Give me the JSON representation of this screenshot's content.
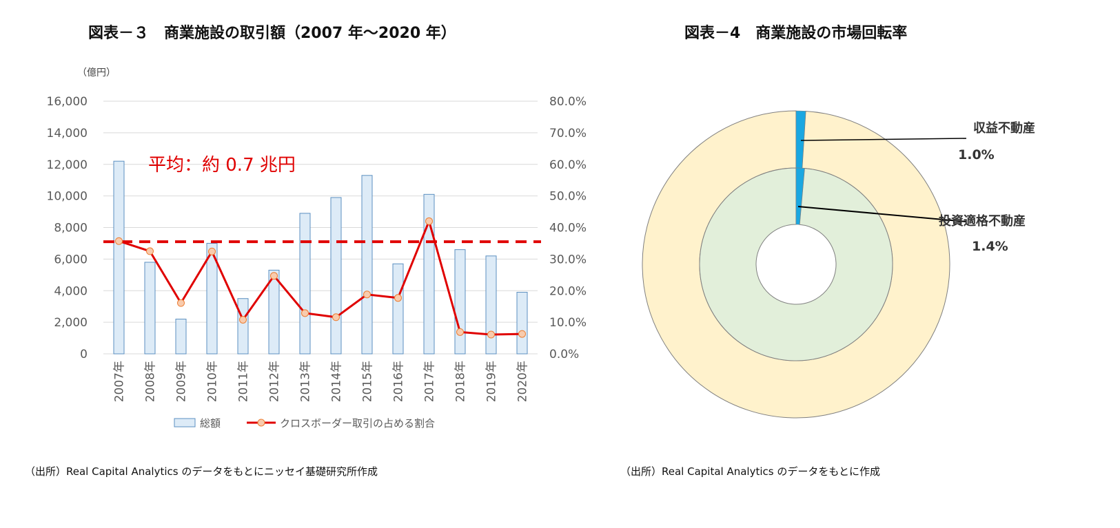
{
  "left": {
    "title": "図表－３　商業施設の取引額（2007 年～2020 年）",
    "source": "（出所）Real Capital Analytics のデータをもとにニッセイ基礎研究所作成"
  },
  "right": {
    "title": "図表－4　商業施設の市場回転率",
    "source": "（出所）Real Capital Analytics のデータをもとに作成"
  },
  "chart_data": [
    {
      "type": "bar+line",
      "title": "図表－３　商業施設の取引額（2007 年～2020 年）",
      "ylabel": "（億円）",
      "ylim": [
        0,
        16000
      ],
      "yticks": [
        "0",
        "2,000",
        "4,000",
        "6,000",
        "8,000",
        "10,000",
        "12,000",
        "14,000",
        "16,000"
      ],
      "y2lim": [
        0,
        80
      ],
      "y2ticks": [
        "0.0%",
        "10.0%",
        "20.0%",
        "30.0%",
        "40.0%",
        "50.0%",
        "60.0%",
        "70.0%",
        "80.0%"
      ],
      "grid": true,
      "legend": "bottom",
      "categories": [
        "2007年",
        "2008年",
        "2009年",
        "2010年",
        "2011年",
        "2012年",
        "2013年",
        "2014年",
        "2015年",
        "2016年",
        "2017年",
        "2018年",
        "2019年",
        "2020年"
      ],
      "series": [
        {
          "name": "総額",
          "type": "bar",
          "axis": "left",
          "color": "#ddebf7",
          "values": [
            12200,
            5800,
            2200,
            7000,
            3500,
            5300,
            8900,
            9900,
            11300,
            5700,
            10100,
            6600,
            6200,
            3900
          ]
        },
        {
          "name": "クロスボーダー取引の占める割合",
          "type": "line",
          "axis": "right",
          "color": "#e00000",
          "values": [
            35.7,
            32.5,
            16.1,
            32.4,
            10.8,
            24.7,
            12.9,
            11.6,
            18.8,
            17.7,
            42.0,
            6.9,
            6.1,
            6.3
          ]
        }
      ],
      "average_line": {
        "value": 7100,
        "label": "平均：約 0.7 兆円",
        "color": "#e00000"
      }
    },
    {
      "type": "pie",
      "title": "図表－4　商業施設の市場回転率",
      "rings": [
        {
          "name": "収益不動産",
          "label": "1.0%",
          "value": 1.0,
          "color": "#1aa7e1",
          "rest_color": "#fff2cc"
        },
        {
          "name": "投資適格不動産",
          "label": "1.4%",
          "value": 1.4,
          "color": "#1aa7e1",
          "rest_color": "#e2efda"
        }
      ]
    }
  ]
}
